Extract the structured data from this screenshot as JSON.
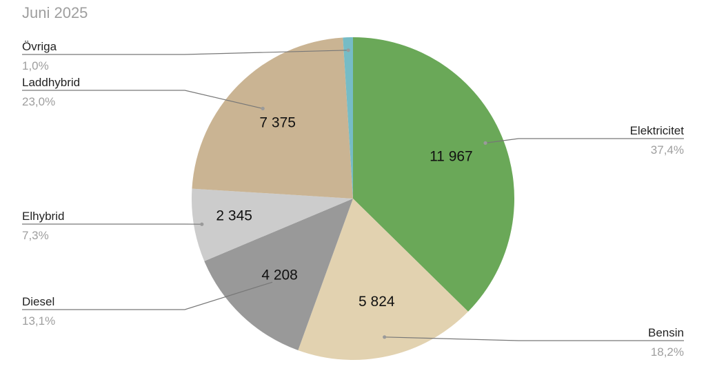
{
  "chart_data": {
    "type": "pie",
    "title": "Juni 2025",
    "start_angle_deg": 0,
    "direction": "clockwise",
    "slices": [
      {
        "label": "Elektricitet",
        "value": 11967,
        "value_label": "11 967",
        "percent_label": "37,4%",
        "color": "#6aa858"
      },
      {
        "label": "Bensin",
        "value": 5824,
        "value_label": "5 824",
        "percent_label": "18,2%",
        "color": "#e2d2b0"
      },
      {
        "label": "Diesel",
        "value": 4208,
        "value_label": "4 208",
        "percent_label": "13,1%",
        "color": "#999999"
      },
      {
        "label": "Elhybrid",
        "value": 2345,
        "value_label": "2 345",
        "percent_label": "7,3%",
        "color": "#cccccc"
      },
      {
        "label": "Laddhybrid",
        "value": 7375,
        "value_label": "7 375",
        "percent_label": "23,0%",
        "color": "#cab493"
      },
      {
        "label": "Övriga",
        "value": 320,
        "value_label": "",
        "percent_label": "1,0%",
        "color": "#76bcc6"
      }
    ]
  }
}
